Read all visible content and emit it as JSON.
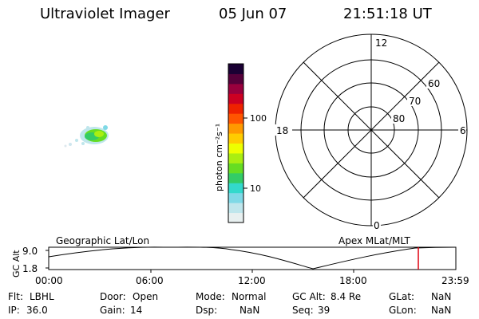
{
  "header": {
    "instrument": "Ultraviolet Imager",
    "date": "05 Jun 07",
    "time": "21:51:18 UT"
  },
  "colorbar": {
    "unit_label": "photon cm⁻²s⁻¹",
    "tick_labels": [
      "100",
      "10"
    ],
    "colors": [
      "#e8f0f0",
      "#bfe6ec",
      "#7fd9e6",
      "#33d9cc",
      "#33cc66",
      "#66dd22",
      "#aaee11",
      "#eeff00",
      "#ffcc00",
      "#ff9900",
      "#ff5500",
      "#ee2200",
      "#cc0022",
      "#99003d",
      "#55003a",
      "#1a0033"
    ]
  },
  "polar_grid": {
    "mlt_labels": {
      "top": "12",
      "left": "18",
      "right": "6",
      "bottom": "0"
    },
    "lat_labels": [
      "60",
      "70",
      "80"
    ]
  },
  "timeline": {
    "label_left": "Geographic Lat/Lon",
    "label_right": "Apex MLat/MLT",
    "axis_title": "GC Alt",
    "y_ticks": [
      "9.0",
      "1.8"
    ],
    "x_ticks": [
      "00:00",
      "06:00",
      "12:00",
      "18:00",
      "23:59"
    ],
    "current_marker_color": "#e0000f"
  },
  "info": {
    "rows": [
      [
        {
          "label": "Flt:",
          "value": "LBHL"
        },
        {
          "label": "Door:",
          "value": "Open"
        },
        {
          "label": "Mode:",
          "value": "Normal"
        },
        {
          "label": "GC Alt:",
          "value": "8.4 Re"
        },
        {
          "label": "GLat:",
          "value": "NaN"
        }
      ],
      [
        {
          "label": "IP:",
          "value": "36.0"
        },
        {
          "label": "Gain:",
          "value": "14"
        },
        {
          "label": "Dsp:",
          "value": "NaN"
        },
        {
          "label": "Seq:",
          "value": "39"
        },
        {
          "label": "GLon:",
          "value": "NaN"
        }
      ]
    ]
  }
}
